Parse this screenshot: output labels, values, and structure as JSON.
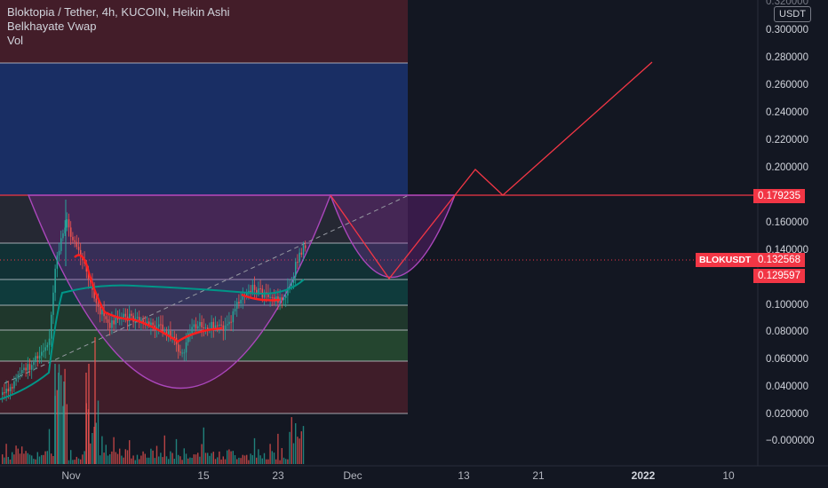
{
  "legend": {
    "title": "Bloktopia / Tether, 4h, KUCOIN, Heikin Ashi",
    "indicator1": "Belkhayate Vwap",
    "indicator2": "Vol"
  },
  "price_axis": {
    "unit": "USDT",
    "top_partial": "0.320000",
    "ticks": [
      "0.300000",
      "0.280000",
      "0.260000",
      "0.240000",
      "0.220000",
      "0.200000",
      "0.160000",
      "0.140000",
      "0.100000",
      "0.080000",
      "0.060000",
      "0.040000",
      "0.020000",
      "−0.000000"
    ]
  },
  "time_axis": {
    "ticks": [
      "Nov",
      "15",
      "23",
      "Dec",
      "13",
      "21",
      "2022",
      "10"
    ]
  },
  "badges": {
    "resistance": "0.179235",
    "symbol": "BLOKUSDT",
    "last_price": "0.132568",
    "vwap": "0.129597"
  },
  "colors": {
    "background": "#131722",
    "up": "#26a69a",
    "down": "#ef5350",
    "badge": "#f23645",
    "vwap": "#ff0000"
  },
  "chart_data": {
    "type": "candlestick",
    "symbol": "BLOKUSDT",
    "exchange": "KUCOIN",
    "interval": "4h",
    "ylim": [
      -0.01,
      0.33
    ],
    "levels": [
      0.179235,
      0.145,
      0.129597,
      0.1,
      0.081,
      0.058,
      0.02
    ],
    "projection": [
      {
        "date": "Nov 29",
        "price": 0.179
      },
      {
        "date": "Dec 5",
        "price": 0.12
      },
      {
        "date": "Dec 13",
        "price": 0.18
      },
      {
        "date": "Dec 15",
        "price": 0.198
      },
      {
        "date": "Dec 18",
        "price": 0.18
      },
      {
        "date": "Jan 2",
        "price": 0.276
      }
    ]
  }
}
